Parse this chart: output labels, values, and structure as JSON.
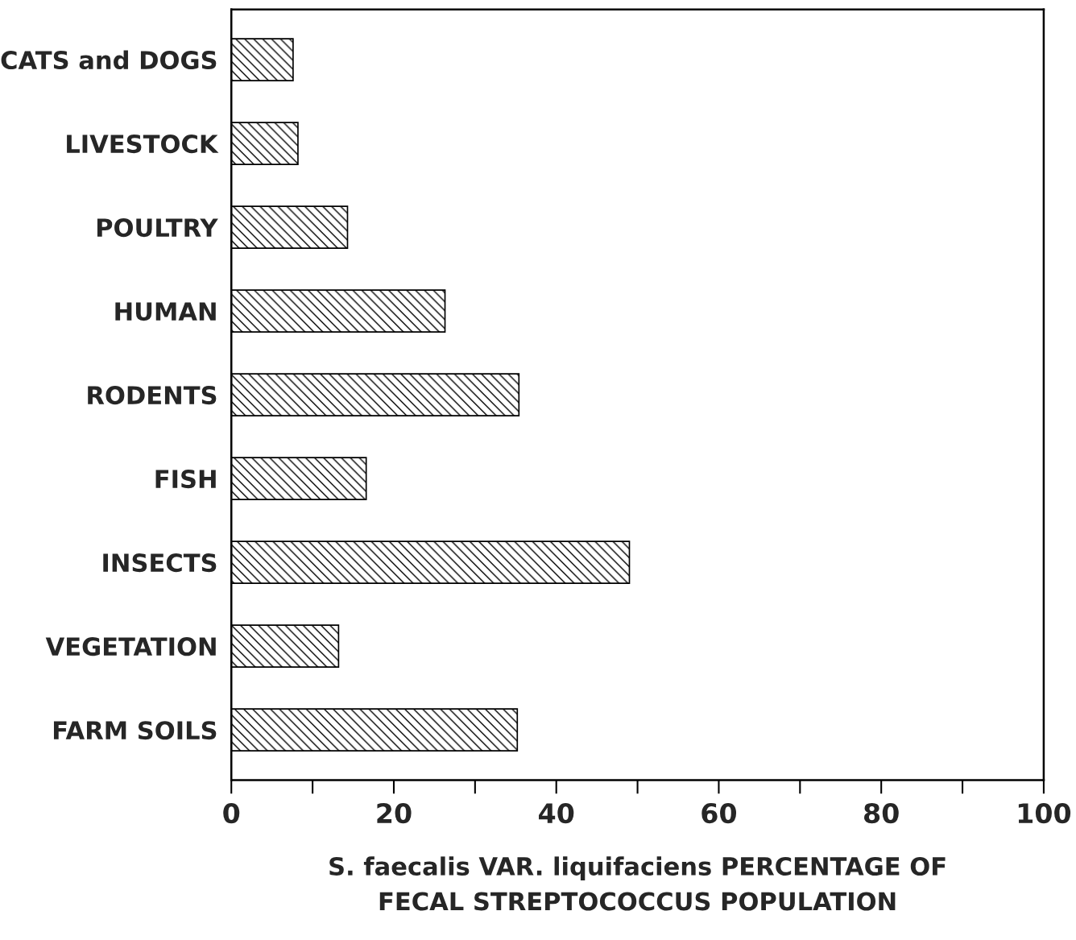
{
  "chart_data": {
    "type": "bar",
    "orientation": "horizontal",
    "categories": [
      "CATS and DOGS",
      "LIVESTOCK",
      "POULTRY",
      "HUMAN",
      "RODENTS",
      "FISH",
      "INSECTS",
      "VEGETATION",
      "FARM SOILS"
    ],
    "values": [
      7.6,
      8.2,
      14.3,
      26.3,
      35.4,
      16.6,
      49,
      13.2,
      35.2
    ],
    "color": "#000000",
    "xlim": [
      0,
      100
    ],
    "xticks": [
      0,
      20,
      40,
      60,
      80,
      100
    ],
    "xlabel": "S. faecalis VAR. liquifaciens PERCENTAGE OF\nFECAL STREPTOCOCCUS POPULATION",
    "grid": false,
    "legend": false
  }
}
